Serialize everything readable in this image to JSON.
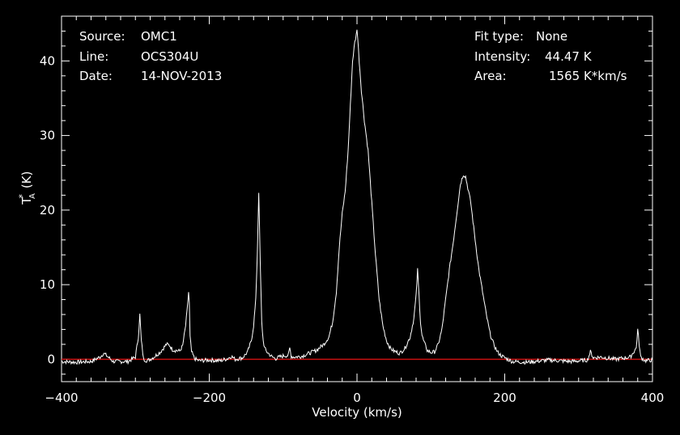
{
  "header_left": {
    "source_label": "Source:",
    "source_value": "OMC1",
    "line_label": "Line:",
    "line_value": "OCS304U",
    "date_label": "Date:",
    "date_value": "14-NOV-2013"
  },
  "header_right": {
    "fit_label": "Fit type:",
    "fit_value": "None",
    "intensity_label": "Intensity:",
    "intensity_value": "44.47 K",
    "area_label": "Area:",
    "area_value": "1565 K*km/s"
  },
  "colors": {
    "background": "#000000",
    "trace": "#ffffff",
    "baseline": "#c81010",
    "axes": "#ffffff"
  },
  "chart_data": {
    "type": "line",
    "xlabel": "Velocity (km/s)",
    "ylabel": "T*A (K)",
    "xlim": [
      -400,
      400
    ],
    "ylim": [
      -3,
      46
    ],
    "xticks": [
      -400,
      -200,
      0,
      200,
      400
    ],
    "yticks": [
      0,
      10,
      20,
      30,
      40
    ],
    "grid": false,
    "baseline_y": 0,
    "series": [
      {
        "x": [
          -400,
          -380,
          -360,
          -348,
          -343,
          -338,
          -330,
          -310,
          -300,
          -296,
          -294,
          -292,
          -289,
          -284,
          -275,
          -266,
          -262,
          -258,
          -254,
          -250,
          -246,
          -240,
          -236,
          -232,
          -230,
          -228,
          -227,
          -226,
          -224,
          -220,
          -214,
          -200,
          -185,
          -175,
          -170,
          -165,
          -155,
          -148,
          -143,
          -140,
          -137,
          -135,
          -133,
          -131,
          -129,
          -127,
          -125,
          -123,
          -120,
          -115,
          -110,
          -105,
          -98,
          -93,
          -91,
          -89,
          -85,
          -75,
          -65,
          -55,
          -45,
          -38,
          -33,
          -28,
          -24,
          -20,
          -16,
          -12,
          -9,
          -6,
          -3,
          -1,
          0,
          1,
          3,
          6,
          10,
          15,
          20,
          25,
          30,
          35,
          40,
          45,
          50,
          58,
          65,
          72,
          77,
          80,
          82,
          84,
          86,
          88,
          90,
          95,
          100,
          105,
          110,
          115,
          120,
          125,
          130,
          135,
          140,
          144,
          147,
          150,
          154,
          160,
          165,
          170,
          175,
          180,
          185,
          190,
          195,
          200,
          210,
          230,
          260,
          290,
          312,
          316,
          320,
          330,
          350,
          370,
          378,
          380,
          382,
          384,
          390,
          400
        ],
        "y": [
          -0.3,
          -0.4,
          -0.3,
          0.3,
          0.8,
          0.4,
          -0.3,
          -0.3,
          0.3,
          3.0,
          6.0,
          2.5,
          0.0,
          -0.2,
          0.3,
          1.0,
          1.5,
          2.0,
          1.9,
          1.3,
          1.2,
          1.1,
          1.8,
          4.5,
          6.5,
          9.0,
          7.5,
          3.0,
          1.0,
          0.1,
          -0.2,
          -0.1,
          -0.2,
          0.1,
          0.4,
          0.0,
          0.2,
          1.0,
          2.5,
          4.5,
          8.0,
          14.0,
          22.5,
          13.0,
          5.0,
          2.5,
          1.5,
          1.1,
          0.8,
          0.3,
          0.1,
          0.3,
          0.5,
          0.5,
          1.5,
          0.4,
          0.3,
          0.4,
          0.8,
          1.2,
          2.0,
          3.0,
          5.0,
          9.0,
          15.0,
          19.5,
          22.5,
          28.0,
          34.0,
          40.0,
          42.5,
          43.5,
          44.4,
          43.0,
          40.0,
          36.0,
          32.0,
          28.0,
          21.0,
          14.0,
          8.0,
          4.5,
          2.5,
          1.5,
          1.1,
          0.8,
          1.5,
          3.0,
          5.5,
          8.5,
          12.0,
          8.5,
          5.0,
          3.2,
          2.5,
          1.2,
          0.9,
          1.0,
          2.0,
          4.0,
          8.0,
          12.0,
          15.5,
          19.5,
          23.5,
          24.8,
          24.5,
          23.0,
          21.0,
          16.0,
          12.0,
          9.0,
          6.0,
          3.5,
          2.0,
          1.0,
          0.5,
          0.2,
          -0.3,
          -0.4,
          -0.1,
          -0.3,
          -0.1,
          1.0,
          0.2,
          0.3,
          0.0,
          0.3,
          1.5,
          4.0,
          2.0,
          0.3,
          -0.2,
          -0.1
        ]
      }
    ]
  }
}
